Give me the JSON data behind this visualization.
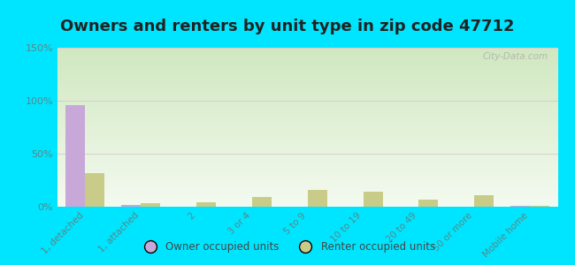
{
  "title": "Owners and renters by unit type in zip code 47712",
  "categories": [
    "1, detached",
    "1, attached",
    "2",
    "3 or 4",
    "5 to 9",
    "10 to 19",
    "20 to 49",
    "50 or more",
    "Mobile home"
  ],
  "owner_values": [
    96,
    2,
    0,
    0,
    0,
    0,
    0,
    0,
    1
  ],
  "renter_values": [
    32,
    3,
    4,
    9,
    16,
    14,
    7,
    11,
    1
  ],
  "owner_color": "#c8a8d8",
  "renter_color": "#c8cc88",
  "background_color": "#00e5ff",
  "plot_bg_top": "#d0e8c0",
  "plot_bg_bottom": "#f4faf0",
  "ylim": [
    0,
    150
  ],
  "yticks": [
    0,
    50,
    100,
    150
  ],
  "ytick_labels": [
    "0%",
    "50%",
    "100%",
    "150%"
  ],
  "title_fontsize": 13,
  "bar_width": 0.35,
  "legend_owner": "Owner occupied units",
  "legend_renter": "Renter occupied units",
  "watermark": "City-Data.com",
  "grid_color": "#d8c8d0",
  "tick_label_color": "#558888"
}
